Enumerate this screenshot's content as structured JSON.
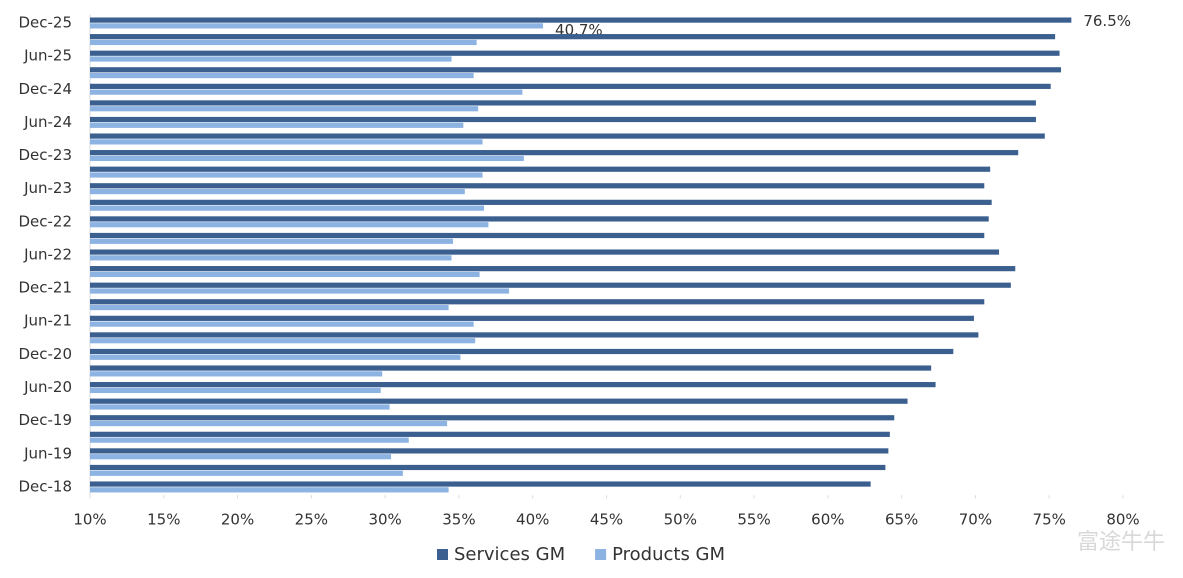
{
  "chart_data": {
    "type": "bar",
    "orientation": "horizontal",
    "categories": [
      "Dec-25",
      null,
      "Jun-25",
      null,
      "Dec-24",
      null,
      "Jun-24",
      null,
      "Dec-23",
      null,
      "Jun-23",
      null,
      "Dec-22",
      null,
      "Jun-22",
      null,
      "Dec-21",
      null,
      "Jun-21",
      null,
      "Dec-20",
      null,
      "Jun-20",
      null,
      "Dec-19",
      null,
      "Jun-19",
      null,
      "Dec-18"
    ],
    "series": [
      {
        "name": "Services GM",
        "color": "#3b5f8f",
        "values": [
          76.5,
          75.4,
          75.7,
          75.8,
          75.1,
          74.1,
          74.1,
          74.7,
          72.9,
          71.0,
          70.6,
          71.1,
          70.9,
          70.6,
          71.6,
          72.7,
          72.4,
          70.6,
          69.9,
          70.2,
          68.5,
          67.0,
          67.3,
          65.4,
          64.5,
          64.2,
          64.1,
          63.9,
          62.9
        ],
        "value_labels": [
          "76.5%",
          null,
          null,
          null,
          null,
          null,
          null,
          null,
          null,
          null,
          null,
          null,
          null,
          null,
          null,
          null,
          null,
          null,
          null,
          null,
          null,
          null,
          null,
          null,
          null,
          null,
          null,
          null,
          null
        ]
      },
      {
        "name": "Products GM",
        "color": "#8db3e2",
        "values": [
          40.7,
          36.2,
          34.5,
          36.0,
          39.3,
          36.3,
          35.3,
          36.6,
          39.4,
          36.6,
          35.4,
          36.7,
          37.0,
          34.6,
          34.5,
          36.4,
          38.4,
          34.3,
          36.0,
          36.1,
          35.1,
          29.8,
          29.7,
          30.3,
          34.2,
          31.6,
          30.4,
          31.2,
          34.3
        ],
        "value_labels": [
          "40.7%",
          null,
          null,
          null,
          null,
          null,
          null,
          null,
          null,
          null,
          null,
          null,
          null,
          null,
          null,
          null,
          null,
          null,
          null,
          null,
          null,
          null,
          null,
          null,
          null,
          null,
          null,
          null,
          null
        ]
      }
    ],
    "xlim": [
      10,
      80
    ],
    "xticks": [
      {
        "value": 10,
        "label": "10%"
      },
      {
        "value": 15,
        "label": "15%"
      },
      {
        "value": 20,
        "label": "20%"
      },
      {
        "value": 25,
        "label": "25%"
      },
      {
        "value": 30,
        "label": "30%"
      },
      {
        "value": 35,
        "label": "35%"
      },
      {
        "value": 40,
        "label": "40%"
      },
      {
        "value": 45,
        "label": "45%"
      },
      {
        "value": 50,
        "label": "50%"
      },
      {
        "value": 55,
        "label": "55%"
      },
      {
        "value": 60,
        "label": "60%"
      },
      {
        "value": 65,
        "label": "65%"
      },
      {
        "value": 70,
        "label": "70%"
      },
      {
        "value": 75,
        "label": "75%"
      },
      {
        "value": 80,
        "label": "80%"
      }
    ],
    "grid": false,
    "legend": "bottom",
    "watermark": "富途牛牛"
  }
}
